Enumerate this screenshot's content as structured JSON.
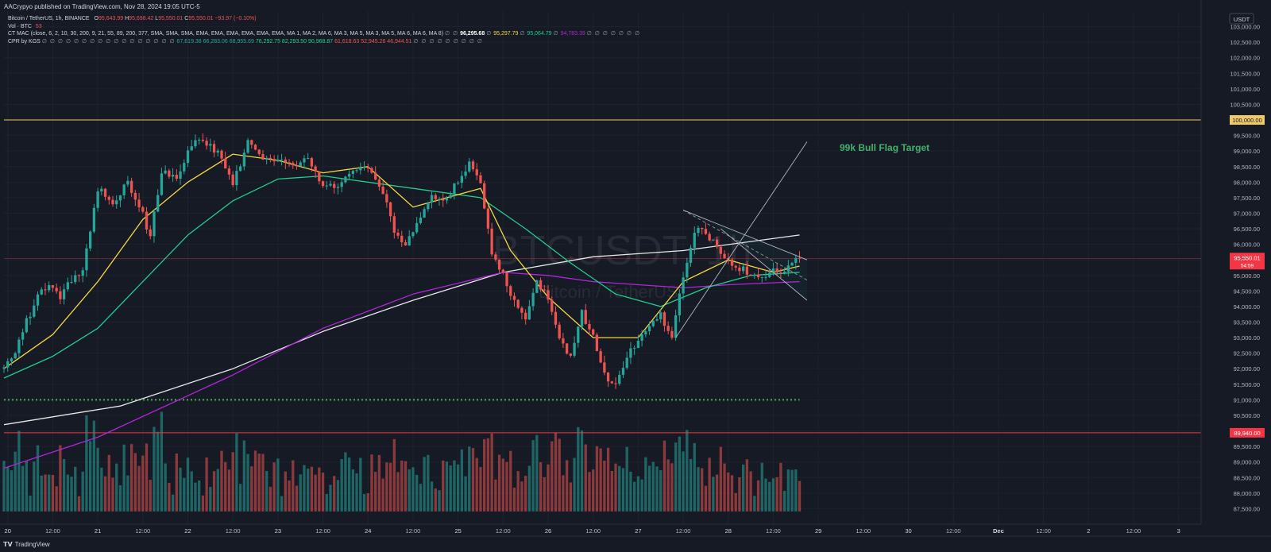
{
  "header": {
    "published": "AACrypyo published on TradingView.com, Nov 28, 2024 19:05 UTC-5"
  },
  "legend": {
    "symbol": "Bitcoin / TetherUS, 1h, BINANCE",
    "o_label": "O",
    "o_value": "95,643.99",
    "h_label": "H",
    "h_value": "95,698.42",
    "l_label": "L",
    "l_value": "95,550.01",
    "c_label": "C",
    "c_value": "95,550.01",
    "change": "−93.97 (−0.10%)",
    "vol_label": "Vol · BTC",
    "vol_value": "53",
    "mac_label": "CT MAC (close, 6, 2, 10, 30, 200, 9, 21, 55, 89, 200, 377, SMA, SMA, SMA, EMA, EMA, EMA, EMA, EMA, EMA, MA 1, MA 2, MA 6, MA 3, MA 5, MA 3, MA 5, MA 6, MA 6, MA 8)",
    "mac_na1": "∅ ∅",
    "mac_values": [
      "96,295.68",
      "95,297.79",
      "95,064.79",
      "94,783.39"
    ],
    "mac_na_between": "∅",
    "mac_na_tail": "∅ ∅ ∅ ∅ ∅ ∅ ∅",
    "cpr_label": "CPR by KGS",
    "cpr_na": "∅ ∅ ∅ ∅ ∅ ∅ ∅ ∅ ∅ ∅ ∅ ∅ ∅ ∅ ∅ ∅ ∅",
    "cpr_values": [
      "67,619.38",
      "66,283.06",
      "68,955.69",
      "76,292.75",
      "82,293.50",
      "90,968.87",
      "61,618.63",
      "52,945.26",
      "46,944.51"
    ],
    "cpr_na_tail": "∅ ∅ ∅ ∅ ∅ ∅ ∅ ∅ ∅"
  },
  "watermark": {
    "ticker": "BTCUSDT, 1h",
    "name": "Bitcoin / TetherUS"
  },
  "colors": {
    "up": "#26a69a",
    "down": "#ef5350",
    "background": "#161a25",
    "ma_white": "#e8e8e8",
    "ma_yellow": "#f5d742",
    "ma_green": "#1fcf8f",
    "ma_purple": "#b026d8",
    "level_100k": "#f0c96b",
    "level_89940": "#f23645",
    "level_91k": "#4caf50",
    "annotation": "#3fb26c"
  },
  "footer": {
    "brand": "TradingView"
  },
  "chart_data": {
    "type": "candlestick",
    "currency_label": "USDT",
    "y_axis": {
      "ylim": [
        87000,
        103500
      ],
      "ticks": [
        "103,000.00",
        "102,500.00",
        "102,000.00",
        "101,500.00",
        "101,000.00",
        "100,500.00",
        "100,000.00",
        "99,500.00",
        "99,000.00",
        "98,500.00",
        "98,000.00",
        "97,500.00",
        "97,000.00",
        "96,500.00",
        "96,000.00",
        "95,500.00",
        "95,000.00",
        "94,500.00",
        "94,000.00",
        "93,500.00",
        "93,000.00",
        "92,500.00",
        "92,000.00",
        "91,500.00",
        "91,000.00",
        "90,500.00",
        "90,000.00",
        "89,500.00",
        "89,000.00",
        "88,500.00",
        "88,000.00",
        "87,500.00"
      ],
      "tick_values": [
        103000,
        102500,
        102000,
        101500,
        101000,
        100500,
        100000,
        99500,
        99000,
        98500,
        98000,
        97500,
        97000,
        96500,
        96000,
        95500,
        95000,
        94500,
        94000,
        93500,
        93000,
        92500,
        92000,
        91500,
        91000,
        90500,
        90000,
        89500,
        89000,
        88500,
        88000,
        87500
      ]
    },
    "x_axis": {
      "start": "2024-11-19T23:00",
      "end": "2024-12-03T06:00",
      "tick_labels": [
        "20",
        "12:00",
        "21",
        "12:00",
        "22",
        "12:00",
        "23",
        "12:00",
        "24",
        "12:00",
        "25",
        "12:00",
        "26",
        "12:00",
        "27",
        "12:00",
        "28",
        "12:00",
        "29",
        "12:00",
        "30",
        "12:00",
        "Dec",
        "12:00",
        "2",
        "12:00",
        "3"
      ],
      "tick_times": [
        "2024-11-20T00:00",
        "2024-11-20T12:00",
        "2024-11-21T00:00",
        "2024-11-21T12:00",
        "2024-11-22T00:00",
        "2024-11-22T12:00",
        "2024-11-23T00:00",
        "2024-11-23T12:00",
        "2024-11-24T00:00",
        "2024-11-24T12:00",
        "2024-11-25T00:00",
        "2024-11-25T12:00",
        "2024-11-26T00:00",
        "2024-11-26T12:00",
        "2024-11-27T00:00",
        "2024-11-27T12:00",
        "2024-11-28T00:00",
        "2024-11-28T12:00",
        "2024-11-29T00:00",
        "2024-11-29T12:00",
        "2024-11-30T00:00",
        "2024-11-30T12:00",
        "2024-12-01T00:00",
        "2024-12-01T12:00",
        "2024-12-02T00:00",
        "2024-12-02T12:00",
        "2024-12-03T00:00"
      ]
    },
    "price_path": [
      [
        "2024-11-19T23:00",
        92000
      ],
      [
        "2024-11-20T02:00",
        92600
      ],
      [
        "2024-11-20T05:00",
        93500
      ],
      [
        "2024-11-20T08:00",
        94300
      ],
      [
        "2024-11-20T11:00",
        94800
      ],
      [
        "2024-11-20T14:00",
        94200
      ],
      [
        "2024-11-20T17:00",
        94900
      ],
      [
        "2024-11-20T20:00",
        95200
      ],
      [
        "2024-11-21T00:00",
        97800
      ],
      [
        "2024-11-21T04:00",
        97300
      ],
      [
        "2024-11-21T08:00",
        98000
      ],
      [
        "2024-11-21T12:00",
        97000
      ],
      [
        "2024-11-21T14:00",
        96200
      ],
      [
        "2024-11-21T17:00",
        98400
      ],
      [
        "2024-11-21T21:00",
        98200
      ],
      [
        "2024-11-22T01:00",
        99200
      ],
      [
        "2024-11-22T05:00",
        99300
      ],
      [
        "2024-11-22T09:00",
        98800
      ],
      [
        "2024-11-22T12:00",
        97900
      ],
      [
        "2024-11-22T16:00",
        99300
      ],
      [
        "2024-11-22T20:00",
        98800
      ],
      [
        "2024-11-23T00:00",
        98700
      ],
      [
        "2024-11-23T04:00",
        98500
      ],
      [
        "2024-11-23T08:00",
        98700
      ],
      [
        "2024-11-23T12:00",
        97900
      ],
      [
        "2024-11-23T16:00",
        97800
      ],
      [
        "2024-11-23T20:00",
        98300
      ],
      [
        "2024-11-24T00:00",
        98500
      ],
      [
        "2024-11-24T04:00",
        97700
      ],
      [
        "2024-11-24T07:00",
        96400
      ],
      [
        "2024-11-24T10:00",
        96000
      ],
      [
        "2024-11-24T13:00",
        96700
      ],
      [
        "2024-11-24T17:00",
        97600
      ],
      [
        "2024-11-24T20:00",
        97400
      ],
      [
        "2024-11-25T00:00",
        98000
      ],
      [
        "2024-11-25T03:00",
        98700
      ],
      [
        "2024-11-25T06:00",
        98000
      ],
      [
        "2024-11-25T09:00",
        95600
      ],
      [
        "2024-11-25T12:00",
        95000
      ],
      [
        "2024-11-25T15:00",
        94200
      ],
      [
        "2024-11-25T18:00",
        93600
      ],
      [
        "2024-11-25T21:00",
        94800
      ],
      [
        "2024-11-26T00:00",
        94300
      ],
      [
        "2024-11-26T03:00",
        93000
      ],
      [
        "2024-11-26T06:00",
        92300
      ],
      [
        "2024-11-26T09:00",
        93800
      ],
      [
        "2024-11-26T12:00",
        93100
      ],
      [
        "2024-11-26T15:00",
        91800
      ],
      [
        "2024-11-26T18:00",
        91500
      ],
      [
        "2024-11-26T21:00",
        92400
      ],
      [
        "2024-11-27T00:00",
        92800
      ],
      [
        "2024-11-27T03:00",
        93400
      ],
      [
        "2024-11-27T06:00",
        93700
      ],
      [
        "2024-11-27T09:00",
        93100
      ],
      [
        "2024-11-27T12:00",
        95000
      ],
      [
        "2024-11-27T15:00",
        96500
      ],
      [
        "2024-11-27T18:00",
        96400
      ],
      [
        "2024-11-27T21:00",
        95900
      ],
      [
        "2024-11-28T00:00",
        95400
      ],
      [
        "2024-11-28T04:00",
        95200
      ],
      [
        "2024-11-28T08:00",
        95000
      ],
      [
        "2024-11-28T12:00",
        95100
      ],
      [
        "2024-11-28T16:00",
        95200
      ],
      [
        "2024-11-28T19:00",
        95550
      ]
    ],
    "volume_ylim": [
      0,
      1400
    ],
    "moving_averages": [
      {
        "color": "#e8e8e8",
        "points": [
          [
            "2024-11-19T23:00",
            90200
          ],
          [
            "2024-11-21T06:00",
            90800
          ],
          [
            "2024-11-22T12:00",
            92000
          ],
          [
            "2024-11-23T12:00",
            93200
          ],
          [
            "2024-11-24T12:00",
            94200
          ],
          [
            "2024-11-25T12:00",
            95100
          ],
          [
            "2024-11-26T12:00",
            95600
          ],
          [
            "2024-11-27T12:00",
            95800
          ],
          [
            "2024-11-28T19:00",
            96300
          ]
        ]
      },
      {
        "color": "#b026d8",
        "points": [
          [
            "2024-11-19T23:00",
            88800
          ],
          [
            "2024-11-21T00:00",
            89800
          ],
          [
            "2024-11-22T12:00",
            91800
          ],
          [
            "2024-11-23T12:00",
            93300
          ],
          [
            "2024-11-24T12:00",
            94400
          ],
          [
            "2024-11-25T12:00",
            95100
          ],
          [
            "2024-11-26T00:00",
            95000
          ],
          [
            "2024-11-26T12:00",
            94800
          ],
          [
            "2024-11-27T12:00",
            94600
          ],
          [
            "2024-11-28T00:00",
            94700
          ],
          [
            "2024-11-28T19:00",
            94800
          ]
        ]
      },
      {
        "color": "#1fcf8f",
        "points": [
          [
            "2024-11-19T23:00",
            91700
          ],
          [
            "2024-11-20T12:00",
            92400
          ],
          [
            "2024-11-21T00:00",
            93300
          ],
          [
            "2024-11-21T12:00",
            94800
          ],
          [
            "2024-11-22T00:00",
            96300
          ],
          [
            "2024-11-22T12:00",
            97400
          ],
          [
            "2024-11-23T00:00",
            98100
          ],
          [
            "2024-11-23T12:00",
            98200
          ],
          [
            "2024-11-24T12:00",
            97800
          ],
          [
            "2024-11-25T06:00",
            97500
          ],
          [
            "2024-11-25T18:00",
            96500
          ],
          [
            "2024-11-26T06:00",
            95400
          ],
          [
            "2024-11-26T18:00",
            94400
          ],
          [
            "2024-11-27T06:00",
            94000
          ],
          [
            "2024-11-27T18:00",
            94600
          ],
          [
            "2024-11-28T06:00",
            95000
          ],
          [
            "2024-11-28T19:00",
            95100
          ]
        ]
      },
      {
        "color": "#f5d742",
        "points": [
          [
            "2024-11-19T23:00",
            92000
          ],
          [
            "2024-11-20T12:00",
            93100
          ],
          [
            "2024-11-21T00:00",
            94800
          ],
          [
            "2024-11-21T12:00",
            96800
          ],
          [
            "2024-11-22T00:00",
            98000
          ],
          [
            "2024-11-22T12:00",
            98900
          ],
          [
            "2024-11-23T00:00",
            98700
          ],
          [
            "2024-11-23T12:00",
            98300
          ],
          [
            "2024-11-24T00:00",
            98500
          ],
          [
            "2024-11-24T12:00",
            97200
          ],
          [
            "2024-11-25T00:00",
            97600
          ],
          [
            "2024-11-25T06:00",
            97800
          ],
          [
            "2024-11-25T14:00",
            95800
          ],
          [
            "2024-11-26T00:00",
            94300
          ],
          [
            "2024-11-26T12:00",
            93000
          ],
          [
            "2024-11-27T00:00",
            93000
          ],
          [
            "2024-11-27T12:00",
            94800
          ],
          [
            "2024-11-28T00:00",
            95500
          ],
          [
            "2024-11-28T12:00",
            95100
          ],
          [
            "2024-11-28T19:00",
            95300
          ]
        ]
      }
    ],
    "horizontal_levels": [
      {
        "price": 100000,
        "label": "100,000.00",
        "color": "#f0c96b",
        "style": "solid"
      },
      {
        "price": 89940,
        "label": "89,940.00",
        "color": "#f23645",
        "style": "solid"
      },
      {
        "price": 91000,
        "color": "#4caf50",
        "style": "dotted",
        "end": "2024-11-28T19:00"
      }
    ],
    "last_price": {
      "price": 95550,
      "label": "95,550.01",
      "countdown": "54:59",
      "color": "#f23645"
    },
    "annotations": [
      {
        "text": "99k Bull Flag Target",
        "color": "#3fb26c"
      }
    ],
    "channel": {
      "upper": [
        [
          "2024-11-27T12:00",
          97100
        ],
        [
          "2024-11-28T21:00",
          95500
        ]
      ],
      "lower": [
        [
          "2024-11-27T22:00",
          96500
        ],
        [
          "2024-11-28T21:00",
          94200
        ]
      ],
      "target_line": [
        [
          "2024-11-27T10:00",
          93000
        ],
        [
          "2024-11-28T21:00",
          99300
        ]
      ]
    }
  }
}
